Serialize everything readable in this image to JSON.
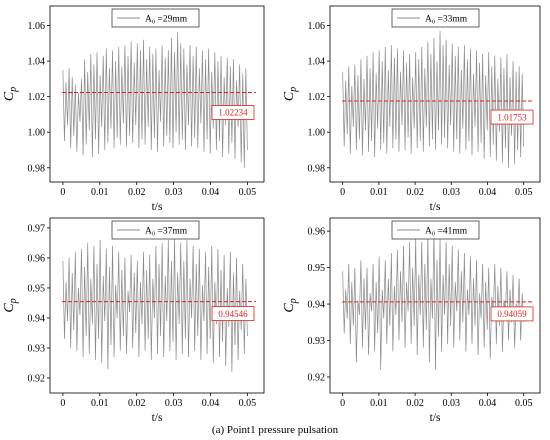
{
  "caption": "(a) Point1 pressure pulsation",
  "chart_data": [
    {
      "type": "line",
      "xlabel": "t/s",
      "ylabel": "C",
      "ylabel_subscript": "p",
      "xlim": [
        -0.0035,
        0.0545
      ],
      "ylim": [
        0.972,
        1.071
      ],
      "xticks": [
        "0",
        "0.01",
        "0.02",
        "0.03",
        "0.04",
        "0.05"
      ],
      "yticks": [
        "0.98",
        "1.00",
        "1.02",
        "1.04",
        "1.06"
      ],
      "grid": false,
      "legend": "top-left",
      "series": [
        {
          "name": "A₀ =29mm",
          "color": "#8a8a8a",
          "t_range": [
            0,
            0.05
          ],
          "values": [
            1.035,
            0.995,
            1.028,
            1.004,
            1.036,
            0.991,
            1.031,
            0.998,
            1.027,
            0.989,
            1.022,
            1.006,
            1.03,
            0.987,
            1.041,
            0.993,
            1.034,
            1.001,
            1.044,
            0.986,
            1.038,
            0.996,
            1.045,
            0.988,
            1.032,
            1.003,
            1.043,
            0.99,
            1.047,
            0.994,
            1.036,
            1.002,
            1.046,
            0.991,
            1.04,
            0.997,
            1.048,
            0.993,
            1.037,
            1.005,
            1.049,
            0.992,
            1.043,
            0.998,
            1.051,
            0.994,
            1.039,
            1.004,
            1.05,
            0.991,
            1.046,
            0.996,
            1.052,
            0.993,
            1.041,
            1.003,
            1.048,
            0.99,
            1.044,
            0.997,
            1.047,
            0.989,
            1.035,
            1.006,
            1.049,
            0.992,
            1.042,
            0.998,
            1.046,
            0.994,
            1.053,
            0.991,
            1.045,
            1.0,
            1.056,
            0.993,
            1.05,
            0.996,
            1.047,
            0.99,
            1.038,
            1.004,
            1.049,
            0.992,
            1.043,
            0.997,
            1.048,
            0.991,
            1.036,
            1.005,
            1.046,
            0.989,
            1.041,
            0.996,
            1.047,
            0.988,
            1.034,
            1.002,
            1.045,
            0.99,
            1.04,
            0.995,
            1.043,
            0.986,
            1.031,
            1.004,
            1.042,
            0.988,
            1.037,
            0.994,
            1.041,
            0.985,
            1.029,
            1.003,
            1.038,
            0.983,
            1.033,
            0.98,
            1.036,
            0.99
          ]
        }
      ],
      "mean_line": {
        "value": 1.02234,
        "label": "1.02234",
        "color": "#d7261e"
      }
    },
    {
      "type": "line",
      "xlabel": "t/s",
      "ylabel": "C",
      "ylabel_subscript": "p",
      "xlim": [
        -0.0035,
        0.0545
      ],
      "ylim": [
        0.972,
        1.071
      ],
      "xticks": [
        "0",
        "0.01",
        "0.02",
        "0.03",
        "0.04",
        "0.05"
      ],
      "yticks": [
        "0.98",
        "1.00",
        "1.02",
        "1.04",
        "1.06"
      ],
      "grid": false,
      "legend": "top-left",
      "series": [
        {
          "name": "A₀ =33mm",
          "color": "#8a8a8a",
          "t_range": [
            0,
            0.05
          ],
          "values": [
            1.034,
            0.992,
            1.029,
            0.999,
            1.037,
            0.988,
            1.026,
            1.003,
            1.038,
            0.99,
            1.032,
            0.996,
            1.041,
            0.987,
            1.03,
            1.001,
            1.043,
            0.989,
            1.036,
            0.995,
            1.045,
            0.986,
            1.033,
            1.002,
            1.046,
            0.99,
            1.04,
            0.994,
            1.048,
            0.988,
            1.035,
            1.003,
            1.049,
            0.991,
            1.042,
            0.996,
            1.047,
            0.989,
            1.034,
            1.004,
            1.046,
            0.99,
            1.039,
            0.997,
            1.044,
            0.988,
            1.031,
            1.002,
            1.045,
            0.991,
            1.041,
            0.995,
            1.048,
            0.989,
            1.036,
            1.003,
            1.051,
            0.992,
            1.044,
            0.996,
            1.053,
            0.99,
            1.04,
            1.001,
            1.057,
            0.993,
            1.049,
            0.997,
            1.052,
            0.991,
            1.038,
            1.004,
            1.05,
            0.989,
            1.043,
            0.996,
            1.048,
            0.988,
            1.035,
            1.002,
            1.049,
            0.99,
            1.041,
            0.995,
            1.047,
            0.987,
            1.033,
            1.003,
            1.046,
            0.989,
            1.039,
            0.994,
            1.044,
            0.985,
            1.032,
            1.001,
            1.045,
            0.986,
            1.037,
            0.993,
            1.043,
            0.984,
            1.03,
            1.0,
            1.042,
            0.983,
            1.036,
            0.991,
            1.044,
            0.98,
            1.031,
            0.998,
            1.04,
            0.982,
            1.034,
            0.99,
            1.037,
            0.986,
            1.033,
            0.992
          ]
        }
      ],
      "mean_line": {
        "value": 1.01753,
        "label": "1.01753",
        "color": "#d7261e"
      }
    },
    {
      "type": "line",
      "xlabel": "t/s",
      "ylabel": "C",
      "ylabel_subscript": "p",
      "xlim": [
        -0.0035,
        0.0545
      ],
      "ylim": [
        0.915,
        0.9733
      ],
      "xticks": [
        "0",
        "0.01",
        "0.02",
        "0.03",
        "0.04",
        "0.05"
      ],
      "yticks": [
        "0.92",
        "0.93",
        "0.94",
        "0.95",
        "0.96",
        "0.97"
      ],
      "grid": false,
      "legend": "top-left",
      "series": [
        {
          "name": "A₀ =37mm",
          "color": "#8a8a8a",
          "t_range": [
            0,
            0.05
          ],
          "values": [
            0.959,
            0.933,
            0.952,
            0.939,
            0.96,
            0.93,
            0.955,
            0.936,
            0.962,
            0.929,
            0.95,
            0.941,
            0.963,
            0.927,
            0.957,
            0.934,
            0.965,
            0.928,
            0.953,
            0.938,
            0.964,
            0.926,
            0.958,
            0.933,
            0.966,
            0.925,
            0.954,
            0.939,
            0.963,
            0.923,
            0.957,
            0.931,
            0.964,
            0.927,
            0.951,
            0.94,
            0.962,
            0.929,
            0.956,
            0.934,
            0.96,
            0.928,
            0.949,
            0.942,
            0.961,
            0.93,
            0.955,
            0.935,
            0.959,
            0.927,
            0.952,
            0.938,
            0.962,
            0.929,
            0.956,
            0.933,
            0.961,
            0.926,
            0.953,
            0.94,
            0.964,
            0.928,
            0.958,
            0.934,
            0.965,
            0.927,
            0.954,
            0.939,
            0.966,
            0.929,
            0.959,
            0.932,
            0.967,
            0.926,
            0.955,
            0.938,
            0.965,
            0.928,
            0.959,
            0.933,
            0.966,
            0.927,
            0.953,
            0.94,
            0.964,
            0.929,
            0.958,
            0.934,
            0.963,
            0.926,
            0.951,
            0.939,
            0.962,
            0.928,
            0.957,
            0.933,
            0.964,
            0.925,
            0.952,
            0.938,
            0.963,
            0.927,
            0.956,
            0.932,
            0.961,
            0.924,
            0.95,
            0.937,
            0.962,
            0.922,
            0.955,
            0.931,
            0.96,
            0.926,
            0.949,
            0.936,
            0.958,
            0.928,
            0.953,
            0.934
          ]
        }
      ],
      "mean_line": {
        "value": 0.94546,
        "label": "0.94546",
        "color": "#d7261e"
      }
    },
    {
      "type": "line",
      "xlabel": "t/s",
      "ylabel": "C",
      "ylabel_subscript": "p",
      "xlim": [
        -0.0035,
        0.0545
      ],
      "ylim": [
        0.9156,
        0.9636
      ],
      "xticks": [
        "0",
        "0.01",
        "0.02",
        "0.03",
        "0.04",
        "0.05"
      ],
      "yticks": [
        "0.92",
        "0.93",
        "0.94",
        "0.95",
        "0.96"
      ],
      "grid": false,
      "legend": "top-left",
      "series": [
        {
          "name": "A₀ =41mm",
          "color": "#8a8a8a",
          "t_range": [
            0,
            0.05
          ],
          "values": [
            0.949,
            0.932,
            0.944,
            0.936,
            0.951,
            0.929,
            0.946,
            0.934,
            0.95,
            0.924,
            0.941,
            0.937,
            0.952,
            0.928,
            0.947,
            0.933,
            0.95,
            0.926,
            0.943,
            0.938,
            0.951,
            0.927,
            0.946,
            0.932,
            0.953,
            0.922,
            0.944,
            0.936,
            0.952,
            0.929,
            0.947,
            0.934,
            0.954,
            0.927,
            0.945,
            0.937,
            0.955,
            0.93,
            0.949,
            0.935,
            0.956,
            0.928,
            0.946,
            0.938,
            0.957,
            0.929,
            0.95,
            0.934,
            0.958,
            0.926,
            0.948,
            0.937,
            0.957,
            0.928,
            0.951,
            0.933,
            0.959,
            0.924,
            0.947,
            0.936,
            0.96,
            0.922,
            0.952,
            0.931,
            0.958,
            0.927,
            0.948,
            0.937,
            0.957,
            0.929,
            0.951,
            0.934,
            0.956,
            0.928,
            0.946,
            0.938,
            0.955,
            0.93,
            0.949,
            0.935,
            0.954,
            0.927,
            0.944,
            0.937,
            0.953,
            0.929,
            0.947,
            0.934,
            0.952,
            0.926,
            0.943,
            0.936,
            0.951,
            0.928,
            0.946,
            0.933,
            0.95,
            0.925,
            0.942,
            0.937,
            0.951,
            0.929,
            0.945,
            0.934,
            0.95,
            0.927,
            0.941,
            0.938,
            0.949,
            0.93,
            0.944,
            0.935,
            0.948,
            0.928,
            0.94,
            0.937,
            0.947,
            0.93,
            0.943,
            0.935
          ]
        }
      ],
      "mean_line": {
        "value": 0.94059,
        "label": "0.94059",
        "color": "#d7261e"
      }
    }
  ]
}
